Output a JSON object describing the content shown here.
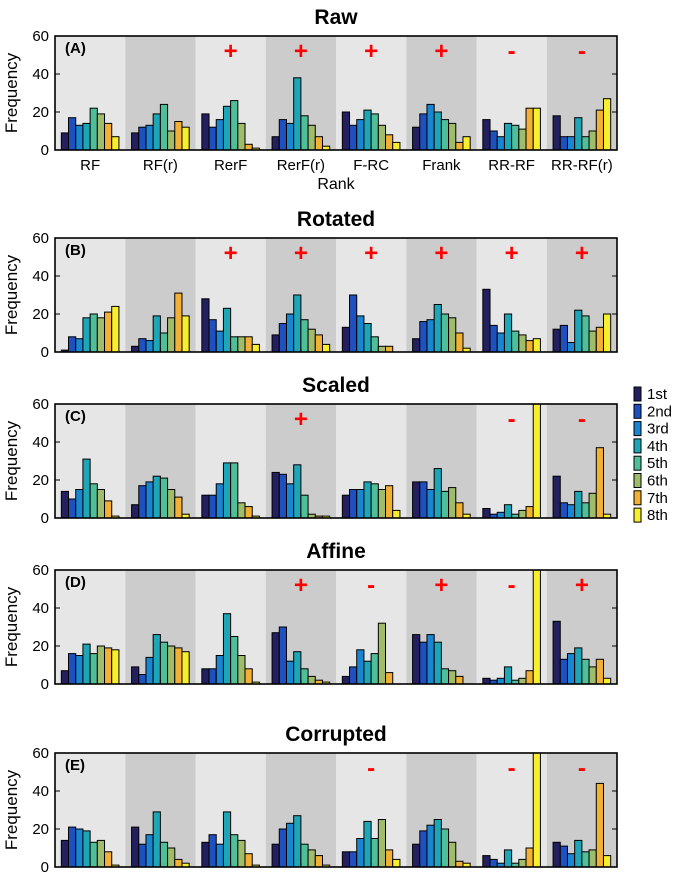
{
  "figure": {
    "methods": [
      "RF",
      "RF(r)",
      "RerF",
      "RerF(r)",
      "F-RC",
      "Frank",
      "RR-RF",
      "RR-RF(r)"
    ],
    "rank_colors": [
      "#241f5e",
      "#1f50c0",
      "#1a86d2",
      "#1fa6b6",
      "#4fbf9a",
      "#9fbc6a",
      "#f2b134",
      "#f7ee2e"
    ],
    "bg_colors": [
      "#e6e6e6",
      "#cccccc"
    ],
    "marker_color": "#ff0000",
    "legend": {
      "entries": [
        "1st",
        "2nd",
        "3rd",
        "4th",
        "5th",
        "6th",
        "7th",
        "8th"
      ]
    }
  },
  "chart_data": [
    {
      "type": "bar",
      "title": "Raw",
      "panel_label": "(A)",
      "ylabel": "Frequency",
      "xlabel": "Rank",
      "ylim": [
        0,
        60
      ],
      "yticks": [
        "0",
        "20",
        "40",
        "60"
      ],
      "categories": [
        "RF",
        "RF(r)",
        "RerF",
        "RerF(r)",
        "F-RC",
        "Frank",
        "RR-RF",
        "RR-RF(r)"
      ],
      "markers": [
        "",
        "",
        "+",
        "+",
        "+",
        "+",
        "-",
        "-"
      ],
      "values": [
        [
          9,
          17,
          13,
          14,
          22,
          19,
          14,
          7
        ],
        [
          9,
          12,
          13,
          19,
          24,
          10,
          15,
          12
        ],
        [
          19,
          12,
          16,
          23,
          26,
          14,
          3,
          1
        ],
        [
          7,
          16,
          14,
          38,
          18,
          13,
          7,
          2
        ],
        [
          20,
          13,
          16,
          21,
          19,
          13,
          8,
          4
        ],
        [
          12,
          19,
          24,
          20,
          16,
          14,
          4,
          7
        ],
        [
          16,
          10,
          7,
          14,
          13,
          11,
          22,
          22
        ],
        [
          18,
          7,
          7,
          17,
          7,
          10,
          21,
          27
        ]
      ]
    },
    {
      "type": "bar",
      "title": "Rotated",
      "panel_label": "(B)",
      "ylabel": "Frequency",
      "ylim": [
        0,
        60
      ],
      "yticks": [
        "0",
        "20",
        "40",
        "60"
      ],
      "categories": [
        "RF",
        "RF(r)",
        "RerF",
        "RerF(r)",
        "F-RC",
        "Frank",
        "RR-RF",
        "RR-RF(r)"
      ],
      "markers": [
        "",
        "",
        "+",
        "+",
        "+",
        "+",
        "+",
        "+"
      ],
      "values": [
        [
          1,
          8,
          7,
          18,
          20,
          18,
          21,
          24
        ],
        [
          3,
          7,
          6,
          19,
          10,
          18,
          31,
          19
        ],
        [
          28,
          17,
          11,
          23,
          8,
          8,
          8,
          4
        ],
        [
          9,
          15,
          20,
          30,
          17,
          12,
          9,
          4
        ],
        [
          13,
          30,
          19,
          15,
          8,
          3,
          3,
          0
        ],
        [
          7,
          16,
          17,
          25,
          20,
          18,
          10,
          2
        ],
        [
          33,
          14,
          10,
          20,
          11,
          9,
          6,
          7
        ],
        [
          12,
          14,
          5,
          22,
          19,
          11,
          13,
          20
        ]
      ]
    },
    {
      "type": "bar",
      "title": "Scaled",
      "panel_label": "(C)",
      "ylabel": "Frequency",
      "ylim": [
        0,
        60
      ],
      "yticks": [
        "0",
        "20",
        "40",
        "60"
      ],
      "categories": [
        "RF",
        "RF(r)",
        "RerF",
        "RerF(r)",
        "F-RC",
        "Frank",
        "RR-RF",
        "RR-RF(r)"
      ],
      "markers": [
        "",
        "",
        "",
        "+",
        "",
        "",
        "-",
        "-"
      ],
      "values": [
        [
          14,
          10,
          15,
          31,
          18,
          15,
          9,
          1
        ],
        [
          7,
          17,
          19,
          22,
          21,
          15,
          11,
          2
        ],
        [
          12,
          12,
          18,
          29,
          29,
          8,
          6,
          1
        ],
        [
          24,
          23,
          18,
          28,
          12,
          2,
          1,
          1
        ],
        [
          12,
          15,
          15,
          19,
          18,
          15,
          17,
          4
        ],
        [
          19,
          19,
          15,
          26,
          14,
          16,
          8,
          2
        ],
        [
          5,
          2,
          3,
          7,
          2,
          4,
          6,
          60
        ],
        [
          22,
          8,
          7,
          14,
          8,
          13,
          37,
          2
        ]
      ]
    },
    {
      "type": "bar",
      "title": "Affine",
      "panel_label": "(D)",
      "ylabel": "Frequency",
      "ylim": [
        0,
        60
      ],
      "yticks": [
        "0",
        "20",
        "40",
        "60"
      ],
      "categories": [
        "RF",
        "RF(r)",
        "RerF",
        "RerF(r)",
        "F-RC",
        "Frank",
        "RR-RF",
        "RR-RF(r)"
      ],
      "markers": [
        "",
        "",
        "",
        "+",
        "-",
        "+",
        "-",
        "+"
      ],
      "values": [
        [
          7,
          16,
          15,
          21,
          16,
          20,
          19,
          18
        ],
        [
          9,
          5,
          14,
          26,
          22,
          20,
          19,
          17
        ],
        [
          8,
          8,
          15,
          37,
          25,
          15,
          8,
          1
        ],
        [
          27,
          30,
          12,
          17,
          8,
          4,
          2,
          1
        ],
        [
          4,
          9,
          18,
          12,
          16,
          32,
          6,
          0
        ],
        [
          26,
          22,
          26,
          22,
          8,
          7,
          4,
          0
        ],
        [
          3,
          2,
          3,
          9,
          2,
          3,
          7,
          60
        ],
        [
          33,
          13,
          16,
          19,
          13,
          9,
          13,
          3
        ]
      ]
    },
    {
      "type": "bar",
      "title": "Corrupted",
      "panel_label": "(E)",
      "ylabel": "Frequency",
      "ylim": [
        0,
        60
      ],
      "yticks": [
        "0",
        "20",
        "40",
        "60"
      ],
      "categories": [
        "RF",
        "RF(r)",
        "RerF",
        "RerF(r)",
        "F-RC",
        "Frank",
        "RR-RF",
        "RR-RF(r)"
      ],
      "markers": [
        "",
        "",
        "",
        "",
        "-",
        "",
        "-",
        "-"
      ],
      "values": [
        [
          14,
          21,
          20,
          19,
          13,
          14,
          8,
          1
        ],
        [
          21,
          12,
          17,
          29,
          13,
          10,
          4,
          2
        ],
        [
          13,
          17,
          12,
          29,
          17,
          14,
          7,
          1
        ],
        [
          12,
          20,
          23,
          27,
          12,
          9,
          6,
          1
        ],
        [
          8,
          8,
          15,
          24,
          15,
          25,
          9,
          4
        ],
        [
          12,
          19,
          22,
          25,
          20,
          13,
          3,
          2
        ],
        [
          6,
          4,
          2,
          9,
          2,
          4,
          10,
          60
        ],
        [
          13,
          11,
          7,
          14,
          8,
          9,
          44,
          6
        ]
      ]
    }
  ]
}
